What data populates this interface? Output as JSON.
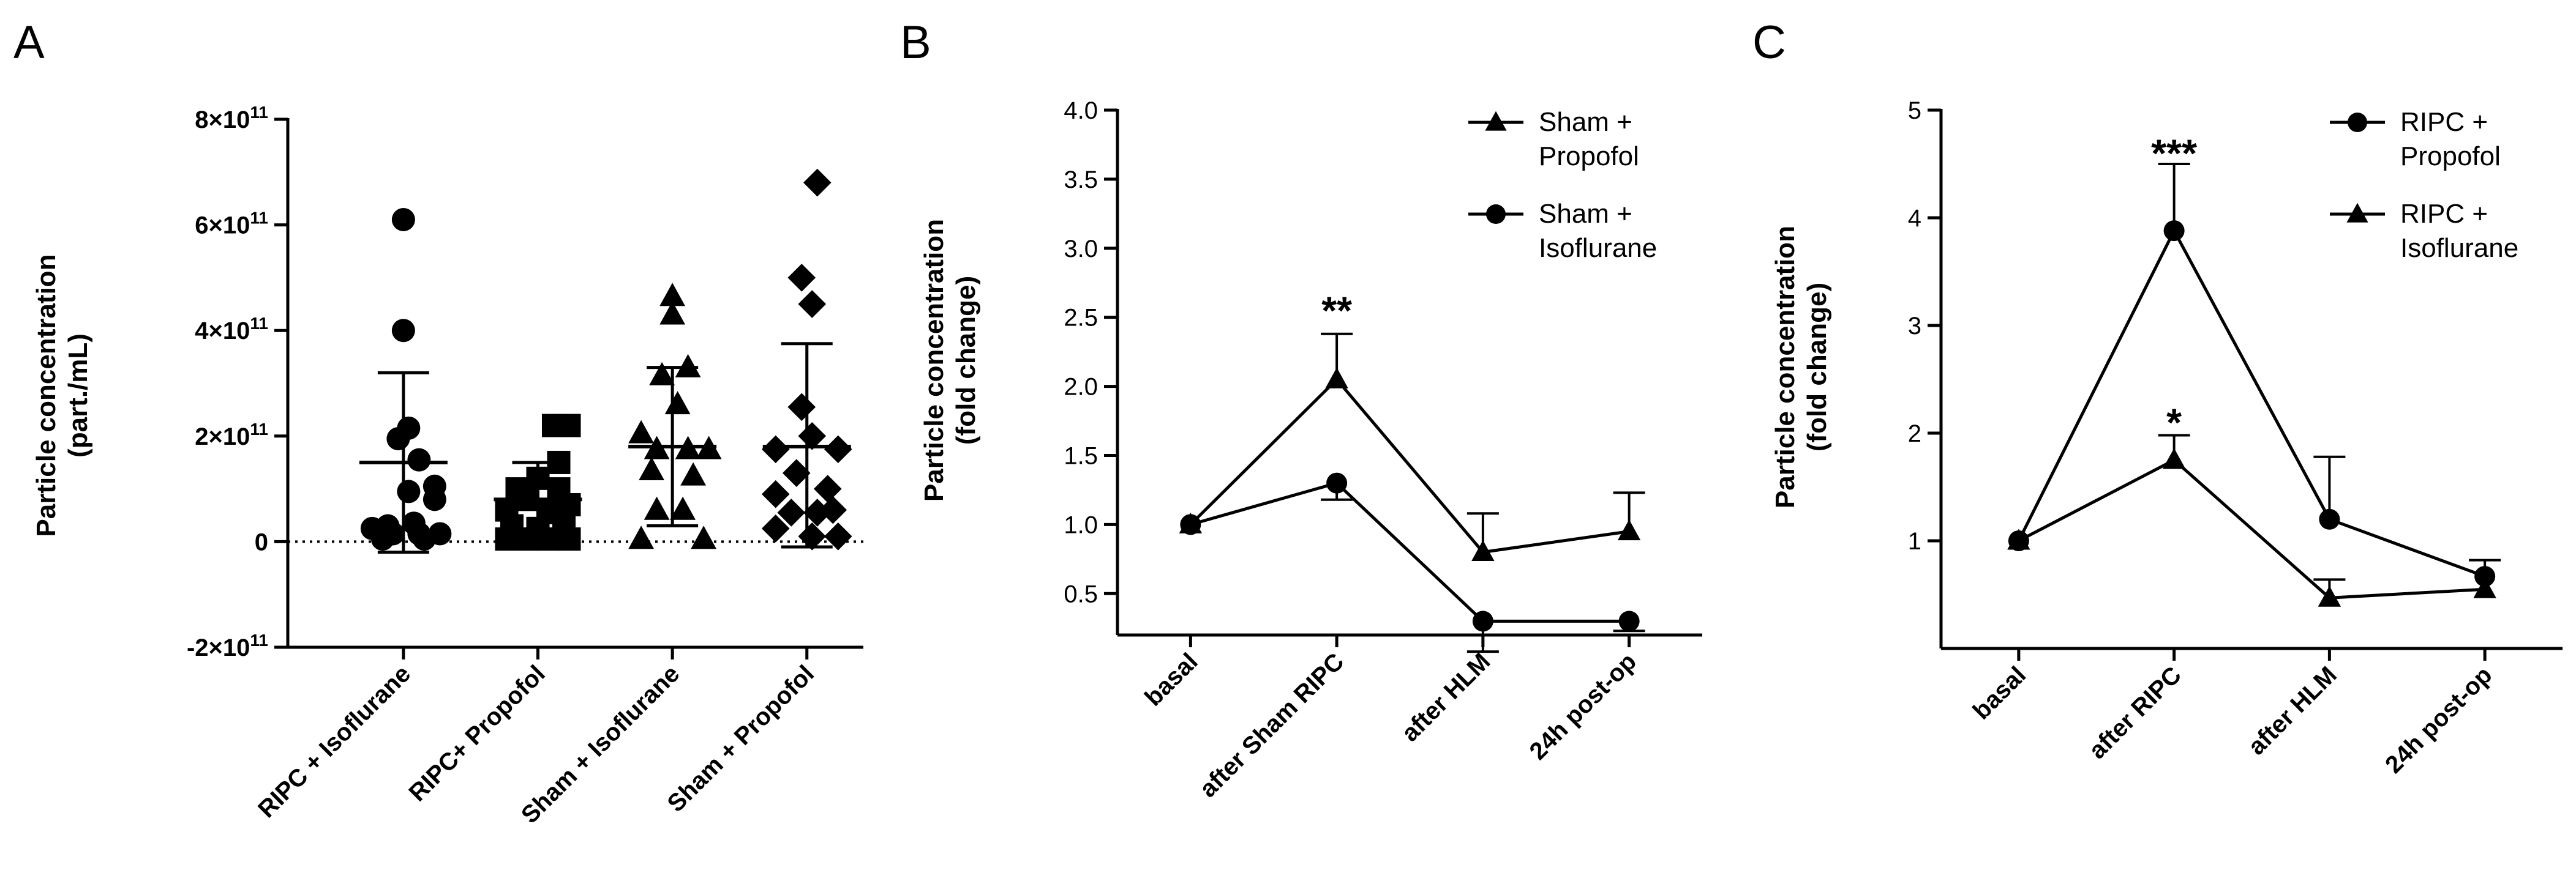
{
  "chart_data": [
    {
      "panel": "A",
      "type": "scatter",
      "ylabel": [
        "Particle concentration",
        "(part./mL)"
      ],
      "ylim": [
        -200000000000.0,
        800000000000.0
      ],
      "yticks": [
        {
          "value": 800000000000.0,
          "label": "8×10",
          "exp": "11"
        },
        {
          "value": 600000000000.0,
          "label": "6×10",
          "exp": "11"
        },
        {
          "value": 400000000000.0,
          "label": "4×10",
          "exp": "11"
        },
        {
          "value": 200000000000.0,
          "label": "2×10",
          "exp": "11"
        },
        {
          "value": 0,
          "label": "0",
          "exp": ""
        },
        {
          "value": -200000000000.0,
          "label": "-2×10",
          "exp": "11"
        }
      ],
      "zero_line": "dotted",
      "categories": [
        "RIPC + Isoflurane",
        "RIPC+ Propofol",
        "Sham + Isoflurane",
        "Sham + Propofol"
      ],
      "groups": [
        {
          "name": "RIPC + Isoflurane",
          "marker": "circle",
          "mean": 150000000000.0,
          "sd_low": -20000000000.0,
          "sd_high": 320000000000.0,
          "points": [
            {
              "dx": 0.0,
              "y": 610000000000.0
            },
            {
              "dx": 0.0,
              "y": 400000000000.0
            },
            {
              "dx": 0.05,
              "y": 215000000000.0
            },
            {
              "dx": -0.05,
              "y": 195000000000.0
            },
            {
              "dx": 0.15,
              "y": 155000000000.0
            },
            {
              "dx": 0.3,
              "y": 105000000000.0
            },
            {
              "dx": 0.05,
              "y": 95000000000.0
            },
            {
              "dx": 0.3,
              "y": 80000000000.0
            },
            {
              "dx": -0.3,
              "y": 25000000000.0
            },
            {
              "dx": -0.15,
              "y": 30000000000.0
            },
            {
              "dx": 0.1,
              "y": 35000000000.0
            },
            {
              "dx": -0.1,
              "y": 15000000000.0
            },
            {
              "dx": 0.15,
              "y": 15000000000.0
            },
            {
              "dx": 0.35,
              "y": 15000000000.0
            },
            {
              "dx": -0.2,
              "y": 5000000000.0
            },
            {
              "dx": 0.2,
              "y": 5000000000.0
            }
          ]
        },
        {
          "name": "RIPC+ Propofol",
          "marker": "square",
          "mean": 80000000000.0,
          "sd_low": 10000000000.0,
          "sd_high": 150000000000.0,
          "points": [
            {
              "dx": 0.15,
              "y": 220000000000.0
            },
            {
              "dx": 0.3,
              "y": 220000000000.0
            },
            {
              "dx": 0.2,
              "y": 150000000000.0
            },
            {
              "dx": 0.0,
              "y": 120000000000.0
            },
            {
              "dx": -0.2,
              "y": 100000000000.0
            },
            {
              "dx": 0.2,
              "y": 100000000000.0
            },
            {
              "dx": -0.1,
              "y": 80000000000.0
            },
            {
              "dx": 0.3,
              "y": 70000000000.0
            },
            {
              "dx": -0.3,
              "y": 60000000000.0
            },
            {
              "dx": 0.1,
              "y": 55000000000.0
            },
            {
              "dx": -0.25,
              "y": 30000000000.0
            },
            {
              "dx": 0.25,
              "y": 30000000000.0
            },
            {
              "dx": 0.0,
              "y": 25000000000.0
            },
            {
              "dx": -0.3,
              "y": 5000000000.0
            },
            {
              "dx": -0.1,
              "y": 5000000000.0
            },
            {
              "dx": 0.1,
              "y": 5000000000.0
            },
            {
              "dx": 0.3,
              "y": 5000000000.0
            }
          ]
        },
        {
          "name": "Sham + Isoflurane",
          "marker": "triangle",
          "mean": 180000000000.0,
          "sd_low": 30000000000.0,
          "sd_high": 330000000000.0,
          "points": [
            {
              "dx": 0.0,
              "y": 465000000000.0
            },
            {
              "dx": 0.0,
              "y": 430000000000.0
            },
            {
              "dx": 0.15,
              "y": 330000000000.0
            },
            {
              "dx": -0.1,
              "y": 315000000000.0
            },
            {
              "dx": 0.05,
              "y": 260000000000.0
            },
            {
              "dx": -0.3,
              "y": 205000000000.0
            },
            {
              "dx": -0.15,
              "y": 175000000000.0
            },
            {
              "dx": 0.15,
              "y": 175000000000.0
            },
            {
              "dx": 0.35,
              "y": 175000000000.0
            },
            {
              "dx": -0.2,
              "y": 135000000000.0
            },
            {
              "dx": 0.2,
              "y": 125000000000.0
            },
            {
              "dx": -0.15,
              "y": 60000000000.0
            },
            {
              "dx": 0.1,
              "y": 60000000000.0
            },
            {
              "dx": -0.3,
              "y": 5000000000.0
            },
            {
              "dx": 0.3,
              "y": 5000000000.0
            }
          ]
        },
        {
          "name": "Sham + Propofol",
          "marker": "diamond",
          "mean": 180000000000.0,
          "sd_low": -10000000000.0,
          "sd_high": 375000000000.0,
          "points": [
            {
              "dx": 0.1,
              "y": 680000000000.0
            },
            {
              "dx": -0.05,
              "y": 500000000000.0
            },
            {
              "dx": 0.05,
              "y": 450000000000.0
            },
            {
              "dx": -0.05,
              "y": 255000000000.0
            },
            {
              "dx": 0.05,
              "y": 200000000000.0
            },
            {
              "dx": -0.3,
              "y": 175000000000.0
            },
            {
              "dx": 0.3,
              "y": 175000000000.0
            },
            {
              "dx": -0.1,
              "y": 130000000000.0
            },
            {
              "dx": 0.2,
              "y": 100000000000.0
            },
            {
              "dx": -0.3,
              "y": 90000000000.0
            },
            {
              "dx": -0.15,
              "y": 55000000000.0
            },
            {
              "dx": 0.1,
              "y": 55000000000.0
            },
            {
              "dx": 0.25,
              "y": 60000000000.0
            },
            {
              "dx": -0.3,
              "y": 25000000000.0
            },
            {
              "dx": 0.05,
              "y": 10000000000.0
            },
            {
              "dx": 0.3,
              "y": 10000000000.0
            }
          ]
        }
      ]
    },
    {
      "panel": "B",
      "type": "line",
      "ylabel": [
        "Particle concentration",
        "(fold change)"
      ],
      "ylim": [
        0.2,
        4.0
      ],
      "yticks": [
        0.5,
        1.0,
        1.5,
        2.0,
        2.5,
        3.0,
        3.5,
        4.0
      ],
      "ytick_labels": [
        "0.5",
        "1.0",
        "1.5",
        "2.0",
        "2.5",
        "3.0",
        "3.5",
        "4.0"
      ],
      "categories": [
        "basal",
        "after Sham RIPC",
        "after HLM",
        "24h post-op"
      ],
      "legend_position": "top-right",
      "series": [
        {
          "name": "Sham +\nPropofol",
          "marker": "triangle",
          "values": [
            1.0,
            2.05,
            0.8,
            0.95
          ],
          "error_up": [
            0,
            0.33,
            0.28,
            0.28
          ],
          "error_down": [
            0,
            0,
            0,
            0
          ]
        },
        {
          "name": "Sham +\nIsoflurane",
          "marker": "circle",
          "values": [
            1.0,
            1.3,
            0.3,
            0.3
          ],
          "error_up": [
            0,
            0,
            0,
            0
          ],
          "error_down": [
            0,
            0.12,
            0.22,
            0.07
          ]
        }
      ],
      "annotations": [
        {
          "text": "**",
          "category": 1,
          "y": 2.55
        }
      ]
    },
    {
      "panel": "C",
      "type": "line",
      "ylabel": [
        "Particle concentration",
        "(fold change)"
      ],
      "ylim": [
        0,
        5
      ],
      "yticks": [
        1,
        2,
        3,
        4,
        5
      ],
      "ytick_labels": [
        "1",
        "2",
        "3",
        "4",
        "5"
      ],
      "categories": [
        "basal",
        "after RIPC",
        "after HLM",
        "24h post-op"
      ],
      "legend_position": "top-right",
      "series": [
        {
          "name": "RIPC +\nPropofol",
          "marker": "circle",
          "values": [
            1.0,
            3.88,
            1.2,
            0.67
          ],
          "error_up": [
            0,
            0.62,
            0.58,
            0.15
          ],
          "error_down": [
            0,
            0,
            0,
            0
          ]
        },
        {
          "name": "RIPC +\nIsoflurane",
          "marker": "triangle",
          "values": [
            1.0,
            1.75,
            0.47,
            0.55
          ],
          "error_up": [
            0,
            0.23,
            0.17,
            0
          ],
          "error_down": [
            0,
            0,
            0,
            0
          ]
        }
      ],
      "annotations": [
        {
          "text": "***",
          "category": 1,
          "y": 4.6
        },
        {
          "text": "*",
          "category": 1,
          "y": 2.1
        }
      ]
    }
  ]
}
